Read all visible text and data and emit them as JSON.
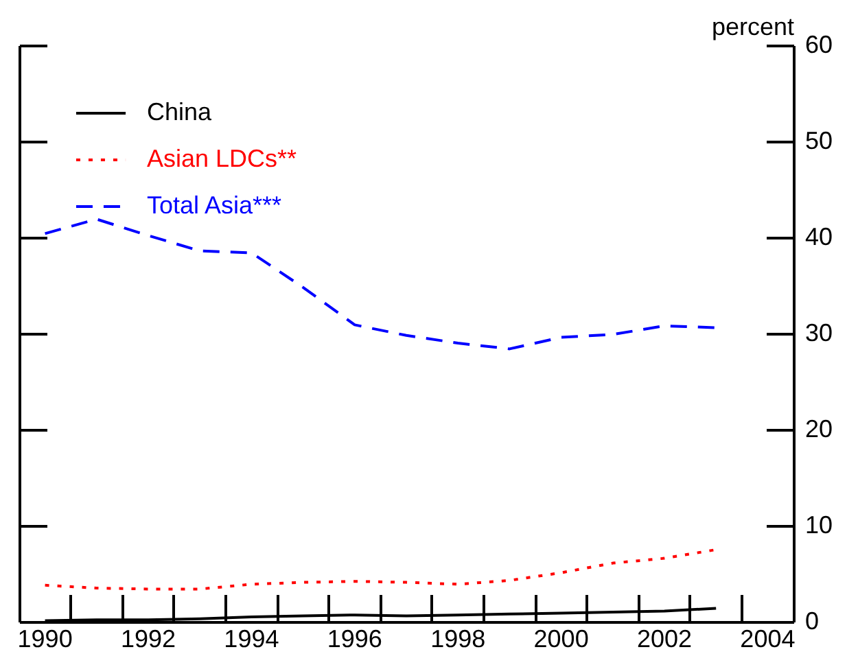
{
  "chart_data": {
    "type": "line",
    "ylabel": "percent",
    "categories": [
      "1990",
      null,
      "1992",
      null,
      "1994",
      null,
      "1996",
      null,
      "1998",
      null,
      "2000",
      null,
      "2002",
      null,
      "2004"
    ],
    "ylim": [
      0,
      60
    ],
    "yticks": [
      0,
      10,
      20,
      30,
      40,
      50,
      60
    ],
    "grid": false,
    "legend": "top left",
    "marker": "none",
    "series": [
      {
        "name": "China",
        "color": "#000000",
        "line_style": "solid",
        "values": [
          0.1,
          0.2,
          0.2,
          0.3,
          0.5,
          0.6,
          0.7,
          0.6,
          0.7,
          0.8,
          0.9,
          1.0,
          1.1,
          1.4,
          null
        ]
      },
      {
        "name": "Asian LDCs**",
        "color": "#ff0000",
        "line_style": "dotted",
        "values": [
          3.8,
          3.5,
          3.4,
          3.4,
          3.9,
          4.1,
          4.2,
          4.1,
          3.9,
          4.3,
          5.1,
          6.1,
          6.6,
          7.5,
          null
        ]
      },
      {
        "name": "Total Asia***",
        "color": "#0000ff",
        "line_style": "dashed",
        "values": [
          40.4,
          41.9,
          40.2,
          38.6,
          38.4,
          34.8,
          30.9,
          29.8,
          29.0,
          28.4,
          29.6,
          29.9,
          30.8,
          30.6,
          null
        ]
      }
    ]
  }
}
